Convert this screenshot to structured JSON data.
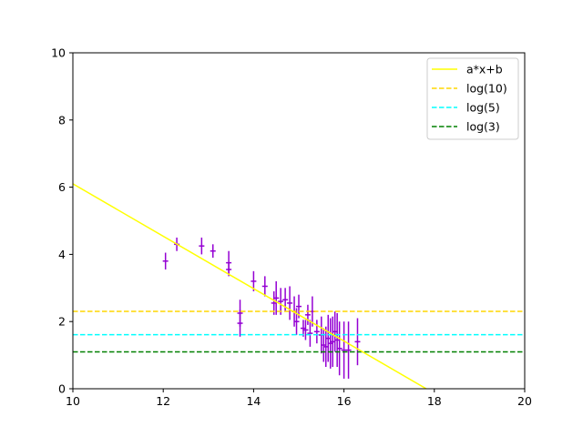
{
  "chart_data": {
    "type": "scatter",
    "title": "",
    "xlabel": "",
    "ylabel": "",
    "xlim": [
      10,
      20
    ],
    "ylim": [
      0,
      10
    ],
    "xticks": [
      10,
      12,
      14,
      16,
      18,
      20
    ],
    "yticks": [
      0,
      2,
      4,
      6,
      8,
      10
    ],
    "grid": false,
    "legend_position": "top-right",
    "fit_line": {
      "name": "a*x+b",
      "slope": -0.78,
      "intercept": 13.9,
      "color": "#ffff00"
    },
    "hlines": [
      {
        "name": "log(10)",
        "y": 2.303,
        "color": "#ffd700"
      },
      {
        "name": "log(5)",
        "y": 1.609,
        "color": "#00ffff"
      },
      {
        "name": "log(3)",
        "y": 1.099,
        "color": "#008000"
      }
    ],
    "series": [
      {
        "color": "#9400d3",
        "points": [
          {
            "x": 12.05,
            "y": 3.8,
            "err": 0.25
          },
          {
            "x": 12.3,
            "y": 4.3,
            "err": 0.2
          },
          {
            "x": 12.85,
            "y": 4.25,
            "err": 0.25
          },
          {
            "x": 13.1,
            "y": 4.1,
            "err": 0.2
          },
          {
            "x": 13.45,
            "y": 3.75,
            "err": 0.35
          },
          {
            "x": 13.45,
            "y": 3.55,
            "err": 0.2
          },
          {
            "x": 13.7,
            "y": 2.25,
            "err": 0.4
          },
          {
            "x": 13.7,
            "y": 1.95,
            "err": 0.4
          },
          {
            "x": 14.0,
            "y": 3.2,
            "err": 0.3
          },
          {
            "x": 14.25,
            "y": 3.05,
            "err": 0.3
          },
          {
            "x": 14.45,
            "y": 2.55,
            "err": 0.35
          },
          {
            "x": 14.5,
            "y": 2.7,
            "err": 0.5
          },
          {
            "x": 14.6,
            "y": 2.6,
            "err": 0.4
          },
          {
            "x": 14.7,
            "y": 2.65,
            "err": 0.35
          },
          {
            "x": 14.8,
            "y": 2.55,
            "err": 0.5
          },
          {
            "x": 14.9,
            "y": 2.3,
            "err": 0.45
          },
          {
            "x": 14.95,
            "y": 2.0,
            "err": 0.4
          },
          {
            "x": 15.0,
            "y": 2.45,
            "err": 0.35
          },
          {
            "x": 15.1,
            "y": 1.8,
            "err": 0.25
          },
          {
            "x": 15.15,
            "y": 1.75,
            "err": 0.3
          },
          {
            "x": 15.2,
            "y": 2.2,
            "err": 0.3
          },
          {
            "x": 15.25,
            "y": 1.65,
            "err": 0.4
          },
          {
            "x": 15.3,
            "y": 2.3,
            "err": 0.45
          },
          {
            "x": 15.4,
            "y": 1.7,
            "err": 0.35
          },
          {
            "x": 15.5,
            "y": 1.6,
            "err": 0.55
          },
          {
            "x": 15.55,
            "y": 1.3,
            "err": 0.5
          },
          {
            "x": 15.6,
            "y": 1.25,
            "err": 0.6
          },
          {
            "x": 15.65,
            "y": 1.5,
            "err": 0.7
          },
          {
            "x": 15.7,
            "y": 1.35,
            "err": 0.75
          },
          {
            "x": 15.75,
            "y": 1.4,
            "err": 0.75
          },
          {
            "x": 15.8,
            "y": 1.7,
            "err": 0.6
          },
          {
            "x": 15.85,
            "y": 1.45,
            "err": 0.8
          },
          {
            "x": 15.9,
            "y": 1.2,
            "err": 0.8
          },
          {
            "x": 16.0,
            "y": 1.15,
            "err": 0.85
          },
          {
            "x": 16.1,
            "y": 1.15,
            "err": 0.85
          },
          {
            "x": 16.3,
            "y": 1.4,
            "err": 0.7
          }
        ]
      }
    ]
  }
}
